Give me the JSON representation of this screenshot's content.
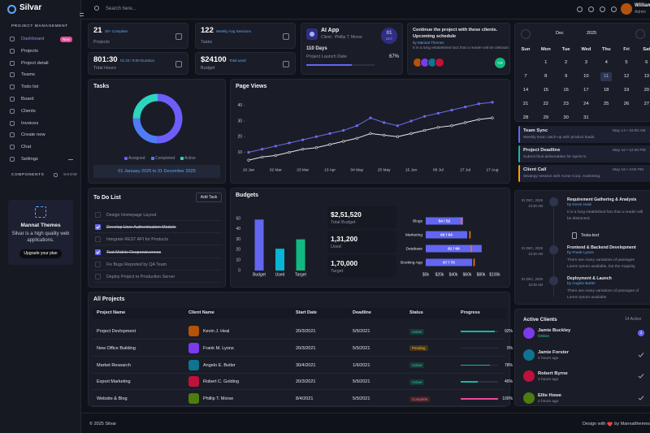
{
  "sidebar": {
    "brand": "Silvar",
    "section": "PROJECT MANAGEMENT",
    "menu": [
      {
        "label": "Dashboard",
        "badge": "New"
      },
      {
        "label": "Projects"
      },
      {
        "label": "Project detail"
      },
      {
        "label": "Teams"
      },
      {
        "label": "Todo list"
      },
      {
        "label": "Board"
      },
      {
        "label": "Clients"
      },
      {
        "label": "Invoices"
      },
      {
        "label": "Create new"
      },
      {
        "label": "Chat"
      },
      {
        "label": "Settings"
      }
    ],
    "components": "COMPONENTS",
    "show": "SHOW",
    "promo": {
      "title": "Mannat Themes",
      "text": "Silvar is a high quality web applications.",
      "button": "Upgrade your plan"
    }
  },
  "topbar": {
    "search": "Search here...",
    "user": {
      "name": "William Martin",
      "role": "Admin"
    }
  },
  "stats": [
    {
      "value": "21",
      "note": "30+ Complete",
      "label": "Projects"
    },
    {
      "value": "122",
      "note": "Weekly Avg Sessions",
      "label": "Tasks"
    },
    {
      "value": "801:30",
      "note": "01:33 / 9:00 Duration",
      "label": "Total Hours"
    },
    {
      "value": "$24100",
      "note": "Total used",
      "label": "Budget"
    }
  ],
  "ai_app": {
    "title": "AI App",
    "client": "Client : Phillip T. Morse",
    "day": "01",
    "month": "OCT",
    "days": "110 Days",
    "caption": "Project Launch Date",
    "progress": 67,
    "progress_label": "67%"
  },
  "schedule": {
    "title": "Continue the project with these clients.",
    "subtitle": "Upcoming schedule",
    "author": "by Mannat Themes",
    "text": "It is a long established fact that a reader will be distracted...",
    "badge": "CR"
  },
  "chart_data": [
    {
      "type": "donut",
      "title": "Tasks",
      "categories": [
        "Assigned",
        "Completed",
        "Active"
      ],
      "values": [
        50,
        25,
        25
      ],
      "colors": [
        "#6d5dfc",
        "#4f7cf7",
        "#2dd4bf"
      ],
      "date_range": "01 January 2025 to 31 December 2025"
    },
    {
      "type": "line",
      "title": "Page Views",
      "categories": [
        "10 Jan",
        null,
        "02 Mar",
        null,
        "23 Mar",
        null,
        "13 Apr",
        null,
        "04 May",
        null,
        "25 May",
        null,
        "15 Jun",
        null,
        "06 Jul",
        null,
        "27 Jul",
        null,
        "17 Aug"
      ],
      "series": [
        {
          "color": "#6c6cf0",
          "values": [
            10,
            12,
            14,
            16,
            18,
            20,
            22,
            24,
            27,
            32,
            29,
            27,
            30,
            33,
            35,
            37,
            39,
            41,
            42
          ]
        },
        {
          "color": "#e5e7eb",
          "values": [
            5,
            7,
            8,
            10,
            12,
            13,
            15,
            17,
            19,
            22,
            21,
            20,
            22,
            24,
            26,
            27,
            29,
            31,
            32
          ]
        }
      ],
      "ylim": [
        3,
        44
      ],
      "yticks": [
        10,
        20,
        30,
        40
      ]
    },
    {
      "type": "bar",
      "title": "Budgets",
      "categories": [
        "Budget",
        "Used",
        "Target"
      ],
      "values": [
        49,
        21,
        30
      ],
      "colors": [
        "#6366f1",
        "#06b6d4",
        "#10b981"
      ],
      "ylim": [
        0,
        50
      ],
      "yticks": [
        0,
        10,
        20,
        30,
        40,
        50
      ],
      "stats": [
        {
          "value": "$2,51,520",
          "label": "Total Budget"
        },
        {
          "value": "1,31,200",
          "label": "Used"
        },
        {
          "value": "1,70,000",
          "label": "Target"
        }
      ]
    },
    {
      "type": "hbar",
      "categories": [
        "Blogs",
        "Marketing",
        "Database",
        "Booking App"
      ],
      "values": [
        54,
        60,
        81,
        67
      ],
      "targets": [
        52,
        64,
        66,
        70
      ],
      "value_labels": [
        "54 / 52",
        "60 / 64",
        "81 / 66",
        "67 / 70"
      ],
      "color": "#6366f1",
      "target_color": "#f97316",
      "xlim": [
        0,
        100
      ],
      "xticks": [
        {
          "value": 0,
          "label": "$0k"
        },
        {
          "value": 20,
          "label": "$20k"
        },
        {
          "value": 40,
          "label": "$40k"
        },
        {
          "value": 60,
          "label": "$60k"
        },
        {
          "value": 80,
          "label": "$80k"
        },
        {
          "value": 100,
          "label": "$100k"
        }
      ]
    }
  ],
  "todo": {
    "title": "To Do List",
    "button": "Add Task",
    "items": [
      {
        "text": "Design Homepage Layout",
        "done": false
      },
      {
        "text": "Develop User Authentication Module",
        "done": true
      },
      {
        "text": "Integrate REST API for Products",
        "done": false
      },
      {
        "text": "Test Mobile Responsiveness",
        "done": true
      },
      {
        "text": "Fix Bugs Reported by QA Team",
        "done": false
      },
      {
        "text": "Deploy Project to Production Server",
        "done": false
      }
    ]
  },
  "projects": {
    "title": "All Projects",
    "columns": [
      "Project Name",
      "Client Name",
      "Start Date",
      "Deadline",
      "Status",
      "Progress"
    ],
    "rows": [
      {
        "project": "Project Devlopment",
        "client": "Kevin J. Heal",
        "start": "20/3/2021",
        "deadline": "5/5/2021",
        "status": "Active",
        "progress": 92,
        "progress_label": "92%"
      },
      {
        "project": "New Office Building",
        "client": "Frank M. Lyons",
        "start": "20/3/2021",
        "deadline": "5/5/2021",
        "status": "Pending",
        "progress": 0,
        "progress_label": "0%"
      },
      {
        "project": "Market Research",
        "client": "Angelo E. Butler",
        "start": "30/4/2021",
        "deadline": "1/6/2021",
        "status": "Active",
        "progress": 78,
        "progress_label": "78%"
      },
      {
        "project": "Export Marketing",
        "client": "Robert C. Golding",
        "start": "20/3/2021",
        "deadline": "5/5/2021",
        "status": "Active",
        "progress": 45,
        "progress_label": "45%"
      },
      {
        "project": "Website & Blog",
        "client": "Phillip T. Morse",
        "start": "8/4/2021",
        "deadline": "5/5/2021",
        "status": "Complete",
        "progress": 100,
        "progress_label": "100%"
      }
    ]
  },
  "calendar": {
    "month": "Dec",
    "year": "2025",
    "weekdays": [
      "Sun",
      "Mon",
      "Tue",
      "Wed",
      "Thu",
      "Fri",
      "Sat"
    ],
    "weeks": [
      [
        null,
        1,
        2,
        3,
        4,
        5,
        6
      ],
      [
        7,
        8,
        9,
        10,
        11,
        12,
        13
      ],
      [
        14,
        15,
        16,
        17,
        18,
        19,
        20
      ],
      [
        21,
        22,
        23,
        24,
        25,
        26,
        27
      ],
      [
        28,
        29,
        30,
        31,
        null,
        null,
        null
      ]
    ],
    "selected": 11
  },
  "events": [
    {
      "title": "Team Sync",
      "time": "May 14 • 10:00 AM",
      "text": "Weekly team catch-up with product leads.",
      "color": "#6366f1"
    },
    {
      "title": "Project Deadline",
      "time": "May 15 • 12:00 PM",
      "text": "Submit final deliverables for Sprint 5.",
      "color": "#14b8a6"
    },
    {
      "title": "Client Call",
      "time": "May 16 • 3:00 PM",
      "text": "Strategy session with Acme Corp. marketing.",
      "color": "#f59e0b"
    }
  ],
  "timeline": [
    {
      "date": "01 DEC, 2025",
      "time": "10:30 AM",
      "title": "Requirement Gathering & Analysis",
      "author": "by Kevin Heal",
      "text": "It is a long established fact that a reader will be distracted.",
      "attachment": "Tesla-text"
    },
    {
      "date": "01 DEC, 2025",
      "time": "10:30 AM",
      "title": "Frontend & Backend Development",
      "author": "by Frank Lyons",
      "text": "There are many variations of passages Lorem Ipsum available, but the majority"
    },
    {
      "date": "01 DEC, 2025",
      "time": "10:30 AM",
      "title": "Deployment & Launch",
      "author": "by Angelo Butler",
      "text": "There are many variations of passages of Lorem Ipsum available"
    }
  ],
  "clients": {
    "title": "Active Clients",
    "count": "14 Active",
    "badge": "2",
    "items": [
      {
        "name": "Jamie Buckley",
        "status": "Online"
      },
      {
        "name": "Jamie Forster",
        "status": "2 hours ago"
      },
      {
        "name": "Robert Byrne",
        "status": "2 hours ago"
      },
      {
        "name": "Ellie Howe",
        "status": "2 hours ago"
      }
    ]
  },
  "footer": {
    "copyright": "© 2025 Silvar",
    "credit_prefix": "Design with",
    "credit_suffix": "by Mannatthemes"
  }
}
